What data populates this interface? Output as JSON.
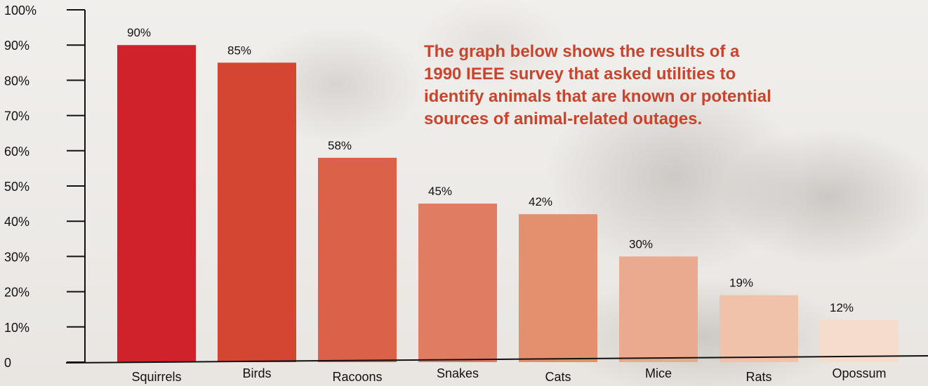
{
  "chart_data": {
    "type": "bar",
    "title": "",
    "xlabel": "",
    "ylabel": "",
    "categories": [
      "Squirrels",
      "Birds",
      "Racoons",
      "Snakes",
      "Cats",
      "Mice",
      "Rats",
      "Opossum"
    ],
    "values": [
      90,
      85,
      58,
      45,
      42,
      30,
      19,
      12
    ],
    "value_labels": [
      "90%",
      "85%",
      "58%",
      "45%",
      "42%",
      "30%",
      "19%",
      "12%"
    ],
    "ylim": [
      0,
      100
    ],
    "yticks": [
      0,
      10,
      20,
      30,
      40,
      50,
      60,
      70,
      80,
      90,
      100
    ],
    "ytick_labels": [
      "0",
      "10%",
      "20%",
      "30%",
      "40%",
      "50%",
      "60%",
      "70%",
      "80%",
      "90%",
      "100%"
    ],
    "bar_colors": [
      "#d0222a",
      "#d44532",
      "#dc6149",
      "#e07c61",
      "#e4906f",
      "#eaaa8f",
      "#f1c2aa",
      "#f6dccd"
    ],
    "grid": false,
    "legend": "none",
    "annotation": "The graph below shows the results of a\n1990 IEEE survey that asked utilities to\nidentify animals that are known or potential\nsources of animal-related outages."
  }
}
